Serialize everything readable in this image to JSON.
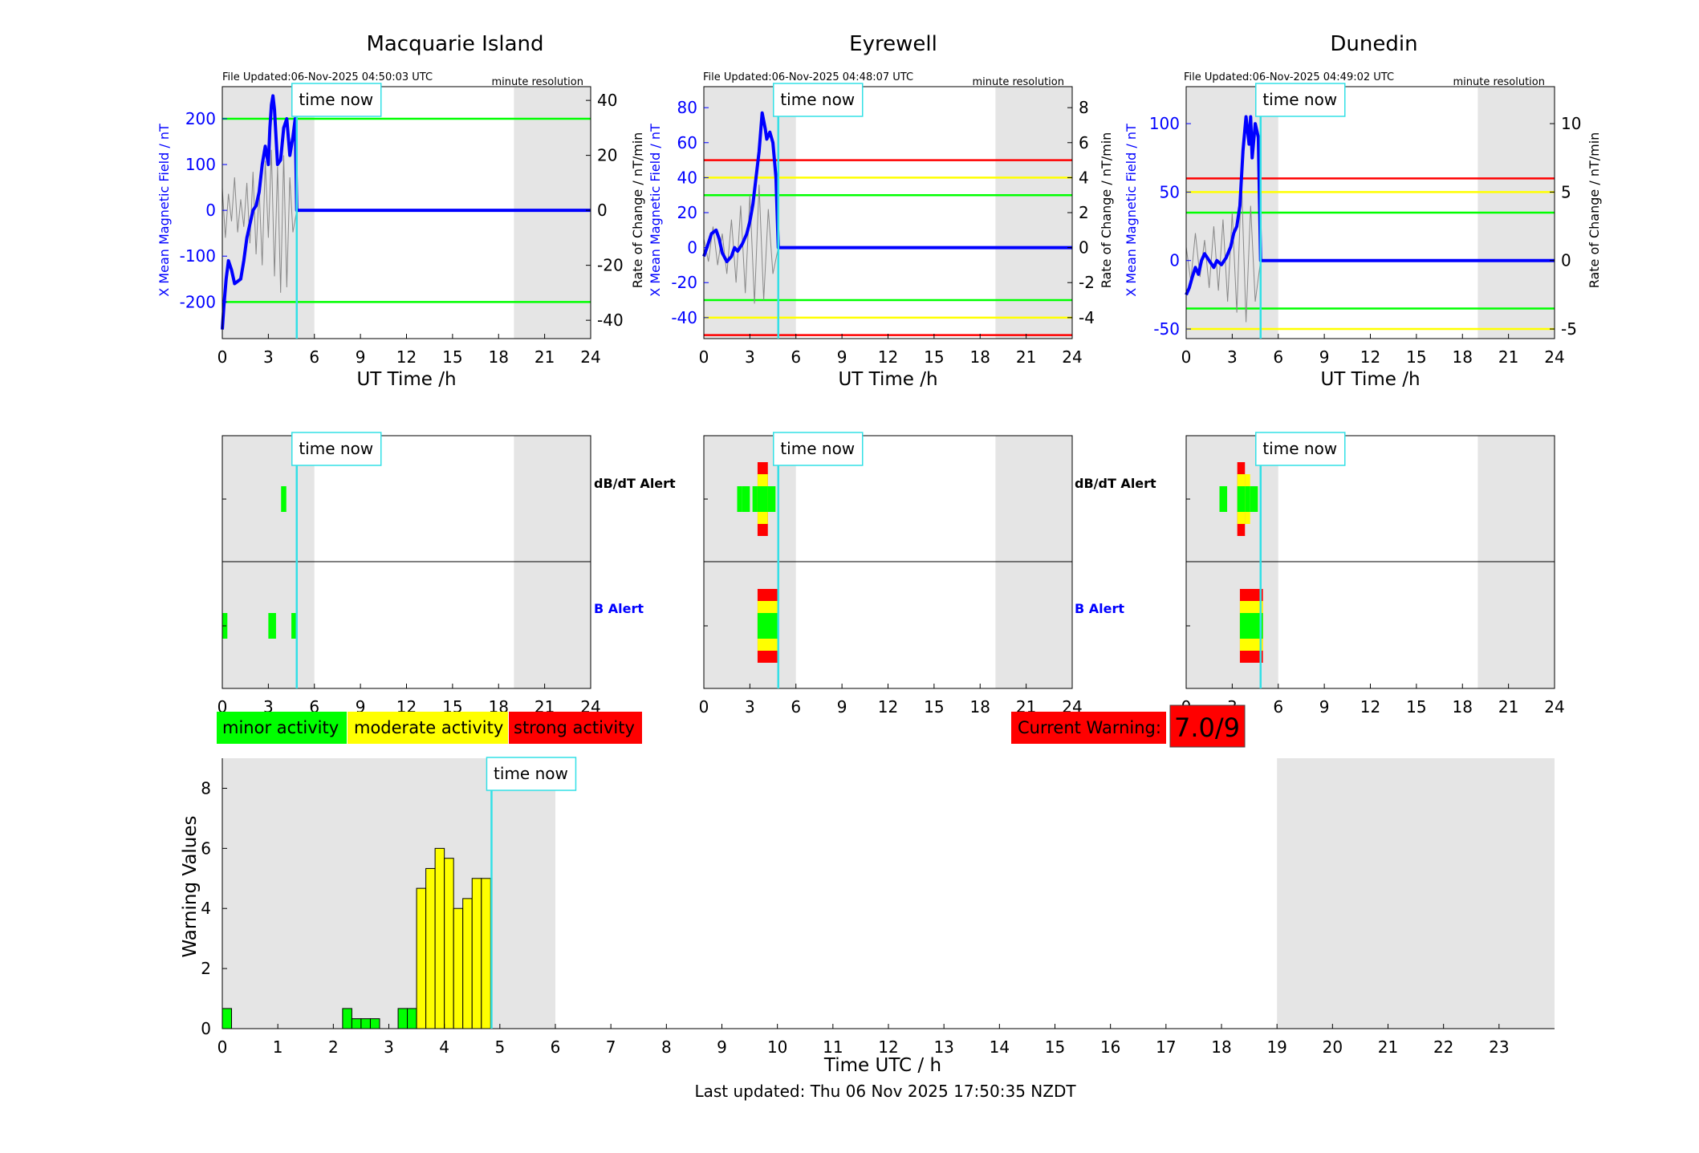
{
  "colors": {
    "blue": "#0000ff",
    "cyan": "#33e0e6",
    "green": "#00ff00",
    "yellow": "#ffff00",
    "red": "#ff0000",
    "shade": "#e5e5e5"
  },
  "time_now_label": "time now",
  "time_now_hours": 4.85,
  "shade_periods_hours": [
    [
      0,
      6
    ],
    [
      19,
      24
    ]
  ],
  "stations": [
    {
      "name": "Macquarie Island",
      "file_updated": "File Updated:06-Nov-2025 04:50:03 UTC",
      "resolution": "minute resolution",
      "ylabel_left": "X Mean Magnetic Field / nT",
      "ylabel_right": "",
      "time_now_hours": 4.85
    },
    {
      "name": "Eyrewell",
      "file_updated": "File Updated:06-Nov-2025 04:48:07 UTC",
      "resolution": "minute resolution",
      "ylabel_left": "X Mean Magnetic Field / nT",
      "ylabel_right": "Rate of Change / nT/min",
      "time_now_hours": 4.85
    },
    {
      "name": "Dunedin",
      "file_updated": "File Updated:06-Nov-2025 04:49:02 UTC",
      "resolution": "minute resolution",
      "ylabel_left": "X Mean Magnetic Field / nT",
      "ylabel_right": "Rate of Change / nT/min",
      "time_now_hours": 4.85
    }
  ],
  "macquarie_ylabel_right": "Rate of Change / nT/min",
  "alert_labels": {
    "dbdt": "dB/dT Alert",
    "b": "B Alert"
  },
  "legend": {
    "minor": "minor activity",
    "moderate": "moderate activity",
    "strong": "strong activity"
  },
  "current_warning_label": "Current Warning:",
  "current_warning_value": "7.0/9",
  "bottom": {
    "ylabel": "Warning Values",
    "xlabel": "Time UTC / h",
    "last_updated": "Last updated: Thu 06 Nov 2025 17:50:35 NZDT"
  },
  "chart_data": [
    {
      "type": "line",
      "station": "Macquarie Island",
      "xlabel": "UT Time /h",
      "ylabel": "X Mean Magnetic Field / nT",
      "ylabel_right": "Rate of Change / nT/min",
      "xlim": [
        0,
        24
      ],
      "xticks": [
        0,
        3,
        6,
        9,
        12,
        15,
        18,
        21,
        24
      ],
      "ylim": [
        -280,
        270
      ],
      "yticks": [
        -200,
        -100,
        0,
        100,
        200
      ],
      "ylim_right": [
        -46.67,
        45
      ],
      "yticks_right": [
        -40,
        -20,
        0,
        20,
        40
      ],
      "thresholds": [
        {
          "value": 200,
          "color": "green"
        },
        {
          "value": -200,
          "color": "green"
        }
      ],
      "series": [
        {
          "name": "X Mean Magnetic Field",
          "x": [
            0,
            0.1,
            0.25,
            0.4,
            0.6,
            0.8,
            1.0,
            1.2,
            1.4,
            1.6,
            1.8,
            2.0,
            2.2,
            2.4,
            2.6,
            2.8,
            3.0,
            3.1,
            3.2,
            3.3,
            3.4,
            3.6,
            3.8,
            4.0,
            4.2,
            4.4,
            4.6,
            4.75,
            4.85,
            24
          ],
          "y": [
            -260,
            -210,
            -150,
            -110,
            -130,
            -160,
            -155,
            -150,
            -110,
            -60,
            -30,
            0,
            10,
            40,
            100,
            140,
            100,
            180,
            230,
            250,
            220,
            100,
            110,
            180,
            200,
            120,
            160,
            200,
            0,
            0
          ]
        },
        {
          "name": "Rate of Change",
          "x": [
            0,
            0.2,
            0.4,
            0.6,
            0.8,
            1.0,
            1.2,
            1.4,
            1.6,
            1.8,
            2.0,
            2.2,
            2.4,
            2.6,
            2.8,
            3.0,
            3.2,
            3.4,
            3.6,
            3.8,
            4.0,
            4.2,
            4.4,
            4.6,
            4.85,
            24
          ],
          "y": [
            8,
            -10,
            6,
            -4,
            12,
            -8,
            4,
            -6,
            10,
            -12,
            14,
            -16,
            8,
            -20,
            18,
            -10,
            22,
            -24,
            16,
            -30,
            20,
            -28,
            12,
            -8,
            0,
            0
          ]
        }
      ]
    },
    {
      "type": "line",
      "station": "Eyrewell",
      "xlabel": "UT Time /h",
      "ylabel": "X Mean Magnetic Field / nT",
      "ylabel_right": "Rate of Change / nT/min",
      "xlim": [
        0,
        24
      ],
      "xticks": [
        0,
        3,
        6,
        9,
        12,
        15,
        18,
        21,
        24
      ],
      "ylim": [
        -52,
        92
      ],
      "yticks": [
        -40,
        -20,
        0,
        20,
        40,
        60,
        80
      ],
      "ylim_right": [
        -5.2,
        9.2
      ],
      "yticks_right": [
        -4,
        -2,
        0,
        2,
        4,
        6,
        8
      ],
      "thresholds": [
        {
          "value": 50,
          "color": "red"
        },
        {
          "value": 40,
          "color": "yellow"
        },
        {
          "value": 30,
          "color": "green"
        },
        {
          "value": -30,
          "color": "green"
        },
        {
          "value": -40,
          "color": "yellow"
        },
        {
          "value": -50,
          "color": "red"
        }
      ],
      "series": [
        {
          "name": "X Mean Magnetic Field",
          "x": [
            0,
            0.2,
            0.5,
            0.8,
            1.0,
            1.2,
            1.5,
            1.8,
            2.0,
            2.2,
            2.5,
            2.8,
            3.0,
            3.2,
            3.4,
            3.6,
            3.8,
            4.0,
            4.1,
            4.3,
            4.5,
            4.7,
            4.85,
            24
          ],
          "y": [
            -5,
            0,
            8,
            10,
            5,
            -3,
            -8,
            -5,
            0,
            -2,
            2,
            8,
            15,
            25,
            40,
            55,
            77,
            68,
            62,
            66,
            60,
            40,
            0,
            0
          ]
        },
        {
          "name": "Rate of Change",
          "x": [
            0,
            0.3,
            0.6,
            0.9,
            1.2,
            1.5,
            1.8,
            2.1,
            2.4,
            2.7,
            3.0,
            3.3,
            3.6,
            3.9,
            4.2,
            4.5,
            4.85,
            24
          ],
          "y": [
            0.5,
            -0.8,
            1.2,
            -1.0,
            0.8,
            -1.5,
            1.6,
            -2.0,
            2.4,
            -2.6,
            3.0,
            -3.2,
            3.6,
            -3.0,
            2.2,
            -1.5,
            0,
            0
          ]
        }
      ]
    },
    {
      "type": "line",
      "station": "Dunedin",
      "xlabel": "UT Time /h",
      "ylabel": "X Mean Magnetic Field / nT",
      "ylabel_right": "Rate of Change / nT/min",
      "xlim": [
        0,
        24
      ],
      "xticks": [
        0,
        3,
        6,
        9,
        12,
        15,
        18,
        21,
        24
      ],
      "ylim": [
        -57,
        127
      ],
      "yticks": [
        -50,
        0,
        50,
        100
      ],
      "ylim_right": [
        -5.7,
        12.7
      ],
      "yticks_right": [
        -5,
        0,
        5,
        10
      ],
      "thresholds": [
        {
          "value": 60,
          "color": "red"
        },
        {
          "value": 50,
          "color": "yellow"
        },
        {
          "value": 35,
          "color": "green"
        },
        {
          "value": -35,
          "color": "green"
        },
        {
          "value": -50,
          "color": "yellow"
        }
      ],
      "series": [
        {
          "name": "X Mean Magnetic Field",
          "x": [
            0,
            0.2,
            0.4,
            0.6,
            0.8,
            1.0,
            1.2,
            1.5,
            1.8,
            2.0,
            2.3,
            2.6,
            2.9,
            3.1,
            3.3,
            3.5,
            3.7,
            3.9,
            4.0,
            4.1,
            4.2,
            4.3,
            4.5,
            4.7,
            4.85,
            24
          ],
          "y": [
            -25,
            -20,
            -12,
            -5,
            -10,
            0,
            5,
            0,
            -5,
            0,
            -3,
            2,
            10,
            20,
            25,
            40,
            80,
            105,
            95,
            85,
            105,
            75,
            100,
            90,
            0,
            0
          ]
        },
        {
          "name": "Rate of Change",
          "x": [
            0,
            0.3,
            0.6,
            0.9,
            1.2,
            1.5,
            1.8,
            2.1,
            2.4,
            2.7,
            3.0,
            3.3,
            3.6,
            3.9,
            4.2,
            4.5,
            4.85,
            24
          ],
          "y": [
            1,
            -1.5,
            2,
            -1.2,
            1.5,
            -2,
            2.5,
            -2.2,
            3,
            -3,
            3.5,
            -3.8,
            6,
            -4.5,
            4,
            -3,
            0,
            0
          ]
        }
      ]
    },
    {
      "type": "bar",
      "title": "",
      "xlabel": "Time UTC / h",
      "ylabel": "Warning Values",
      "xlim": [
        0,
        24
      ],
      "ylim": [
        0,
        9
      ],
      "yticks": [
        0,
        2,
        4,
        6,
        8
      ],
      "xticks": [
        0,
        1,
        2,
        3,
        4,
        5,
        6,
        7,
        8,
        9,
        10,
        11,
        12,
        13,
        14,
        15,
        16,
        17,
        18,
        19,
        20,
        21,
        22,
        23
      ],
      "bar_width_hours": 0.1667,
      "x": [
        0.0,
        2.167,
        2.333,
        2.5,
        2.667,
        3.167,
        3.333,
        3.5,
        3.667,
        3.833,
        4.0,
        4.167,
        4.333,
        4.5,
        4.667
      ],
      "values": [
        0.67,
        0.67,
        0.33,
        0.33,
        0.33,
        0.67,
        0.67,
        4.67,
        5.33,
        6.0,
        5.67,
        4.0,
        4.33,
        5.0,
        5.0
      ],
      "level": [
        "minor",
        "minor",
        "minor",
        "minor",
        "minor",
        "minor",
        "minor",
        "moderate",
        "moderate",
        "moderate",
        "moderate",
        "moderate",
        "moderate",
        "moderate",
        "moderate"
      ]
    }
  ],
  "alerts": [
    {
      "station": "Macquarie Island",
      "dbdt": [
        {
          "start": 3.83,
          "end": 4.17,
          "level": "minor"
        }
      ],
      "b": [
        {
          "start": 0.0,
          "end": 0.33,
          "level": "minor"
        },
        {
          "start": 3.0,
          "end": 3.5,
          "level": "minor"
        },
        {
          "start": 4.5,
          "end": 4.83,
          "level": "minor"
        }
      ]
    },
    {
      "station": "Eyrewell",
      "dbdt": [
        {
          "start": 2.17,
          "end": 2.5,
          "level": "minor"
        },
        {
          "start": 2.5,
          "end": 3.0,
          "level": "minor"
        },
        {
          "start": 3.17,
          "end": 3.5,
          "level": "minor"
        },
        {
          "start": 3.5,
          "end": 4.17,
          "level": "strong"
        },
        {
          "start": 4.17,
          "end": 4.67,
          "level": "minor"
        }
      ],
      "b": [
        {
          "start": 3.5,
          "end": 4.83,
          "level": "strong"
        }
      ]
    },
    {
      "station": "Dunedin",
      "dbdt": [
        {
          "start": 2.17,
          "end": 2.67,
          "level": "minor"
        },
        {
          "start": 3.33,
          "end": 3.83,
          "level": "strong"
        },
        {
          "start": 3.83,
          "end": 4.17,
          "level": "moderate"
        },
        {
          "start": 4.17,
          "end": 4.67,
          "level": "minor"
        }
      ],
      "b": [
        {
          "start": 3.5,
          "end": 5.0,
          "level": "strong"
        }
      ]
    }
  ]
}
